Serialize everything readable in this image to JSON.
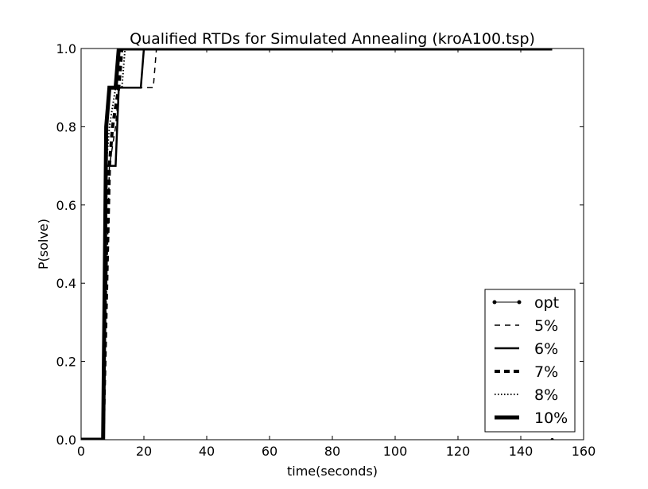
{
  "chart_data": {
    "type": "line",
    "title": "Qualified RTDs for Simulated Annealing (kroA100.tsp)",
    "xlabel": "time(seconds)",
    "ylabel": "P(solve)",
    "xlim": [
      0,
      160
    ],
    "ylim": [
      0.0,
      1.0
    ],
    "xticks": [
      0,
      20,
      40,
      60,
      80,
      100,
      120,
      140,
      160
    ],
    "xtick_labels": [
      "0",
      "20",
      "40",
      "60",
      "80",
      "100",
      "120",
      "140",
      "160"
    ],
    "yticks": [
      0.0,
      0.2,
      0.4,
      0.6,
      0.8,
      1.0
    ],
    "ytick_labels": [
      "0.0",
      "0.2",
      "0.4",
      "0.6",
      "0.8",
      "1.0"
    ],
    "grid": false,
    "legend_position": "lower-right",
    "series": [
      {
        "name": "opt",
        "style": "line-dot-markers",
        "color": "#000000",
        "x": [
          0,
          150
        ],
        "y": [
          0.0,
          0.0
        ]
      },
      {
        "name": "5%",
        "style": "dashed",
        "color": "#000000",
        "x": [
          0,
          7,
          9,
          11,
          12,
          23,
          24,
          150
        ],
        "y": [
          0.0,
          0.0,
          0.7,
          0.8,
          0.9,
          0.9,
          1.0,
          1.0
        ]
      },
      {
        "name": "6%",
        "style": "solid",
        "color": "#000000",
        "x": [
          0,
          7,
          8,
          9,
          11,
          12,
          19,
          20,
          150
        ],
        "y": [
          0.0,
          0.0,
          0.7,
          0.7,
          0.7,
          0.9,
          0.9,
          1.0,
          1.0
        ]
      },
      {
        "name": "7%",
        "style": "thick-dashed",
        "color": "#000000",
        "x": [
          0,
          7,
          9,
          10,
          12,
          13,
          150
        ],
        "y": [
          0.0,
          0.0,
          0.7,
          0.8,
          0.9,
          1.0,
          1.0
        ]
      },
      {
        "name": "8%",
        "style": "dotted",
        "color": "#000000",
        "x": [
          0,
          7,
          8,
          9,
          11,
          13,
          14,
          150
        ],
        "y": [
          0.0,
          0.0,
          0.7,
          0.8,
          0.9,
          0.9,
          1.0,
          1.0
        ]
      },
      {
        "name": "10%",
        "style": "extra-thick-solid",
        "color": "#000000",
        "x": [
          0,
          7,
          8,
          9,
          11,
          12,
          150
        ],
        "y": [
          0.0,
          0.0,
          0.8,
          0.9,
          0.9,
          1.0,
          1.0
        ]
      }
    ]
  }
}
